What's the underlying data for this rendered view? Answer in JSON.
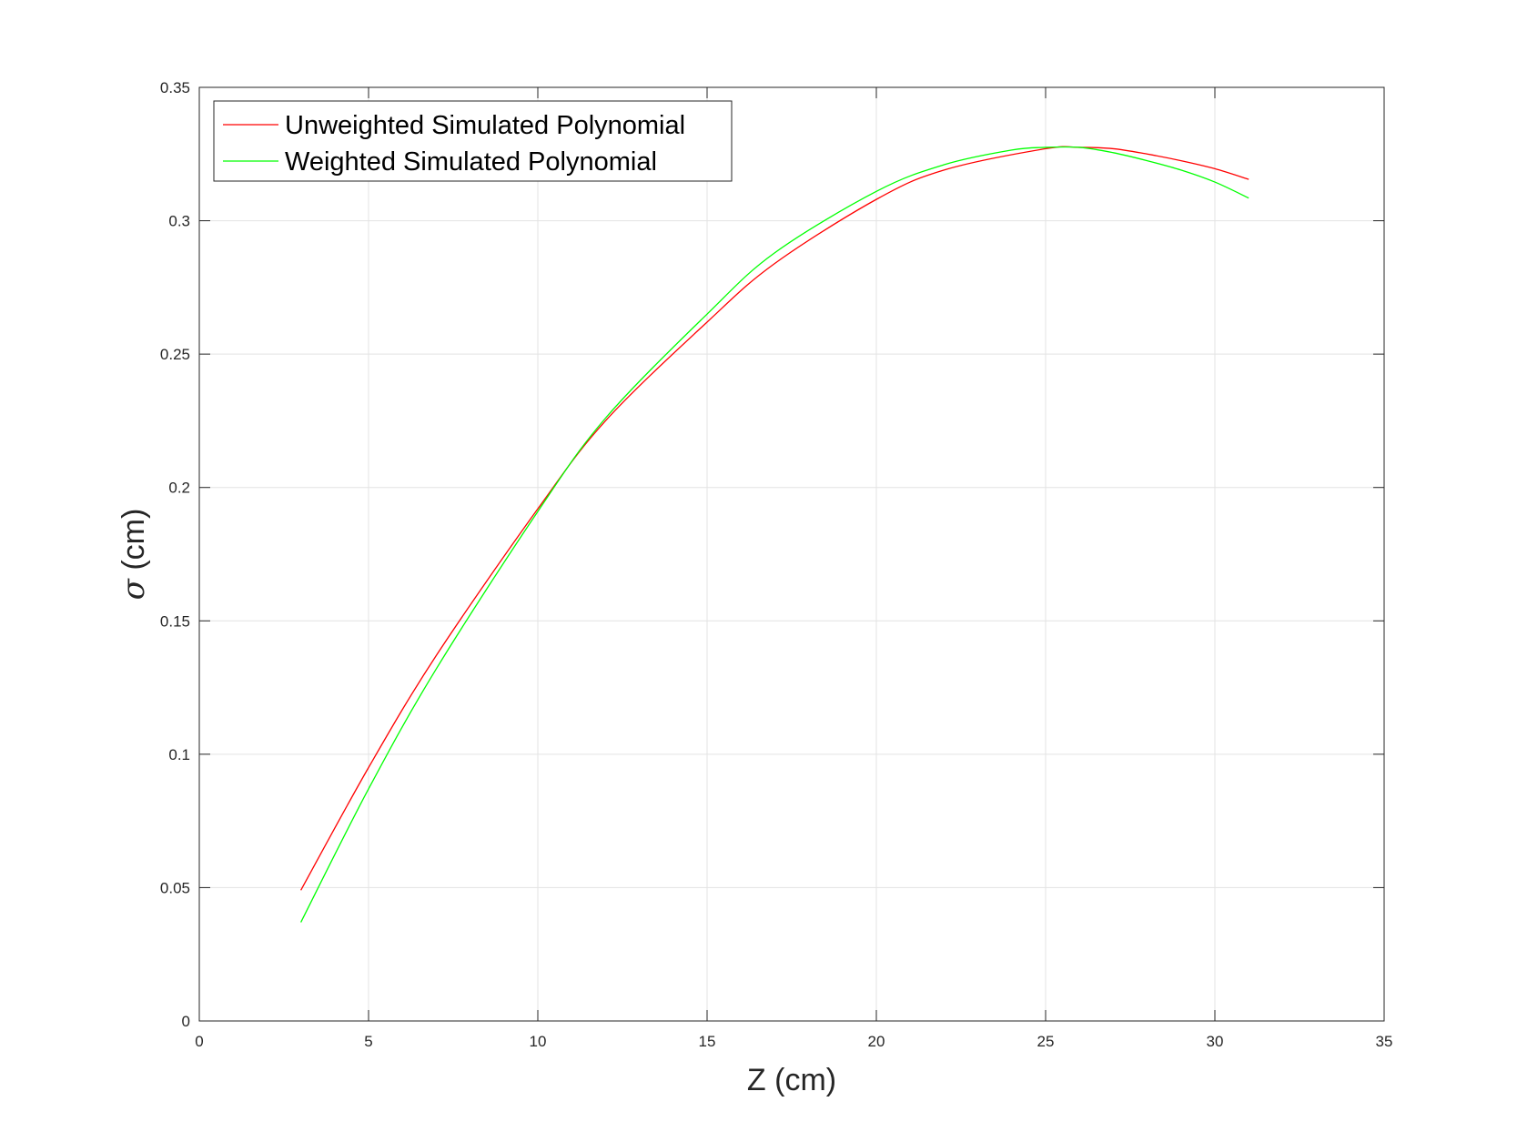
{
  "chart_data": {
    "type": "line",
    "title": "",
    "xlabel": "Z (cm)",
    "ylabel_symbol": "σ",
    "ylabel_unit": " (cm)",
    "xlim": [
      0,
      35
    ],
    "ylim": [
      0,
      0.35
    ],
    "xticks": [
      0,
      5,
      10,
      15,
      20,
      25,
      30,
      35
    ],
    "yticks": [
      0,
      0.05,
      0.1,
      0.15,
      0.2,
      0.25,
      0.3,
      0.35
    ],
    "xtick_labels": [
      "0",
      "5",
      "10",
      "15",
      "20",
      "25",
      "30",
      "35"
    ],
    "ytick_labels": [
      "0",
      "0.05",
      "0.1",
      "0.15",
      "0.2",
      "0.25",
      "0.3",
      "0.35"
    ],
    "grid": true,
    "legend_position": "top-left",
    "series": [
      {
        "name": "Unweighted Simulated Polynomial",
        "color": "#ff0000",
        "x": [
          3,
          5,
          7,
          10,
          12,
          15,
          17,
          20,
          22,
          25,
          26,
          27,
          28,
          29,
          30,
          31
        ],
        "y": [
          0.049,
          0.095,
          0.137,
          0.192,
          0.225,
          0.262,
          0.284,
          0.308,
          0.319,
          0.327,
          0.3275,
          0.327,
          0.325,
          0.3225,
          0.3195,
          0.3155
        ]
      },
      {
        "name": "Weighted Simulated Polynomial",
        "color": "#00ff00",
        "x": [
          3,
          5,
          7,
          10,
          12,
          15,
          17,
          20,
          22,
          24,
          25,
          26,
          27,
          28,
          29,
          30,
          31
        ],
        "y": [
          0.037,
          0.087,
          0.132,
          0.191,
          0.226,
          0.265,
          0.288,
          0.311,
          0.321,
          0.3265,
          0.3275,
          0.3275,
          0.3255,
          0.3225,
          0.319,
          0.3145,
          0.3085
        ]
      }
    ]
  }
}
